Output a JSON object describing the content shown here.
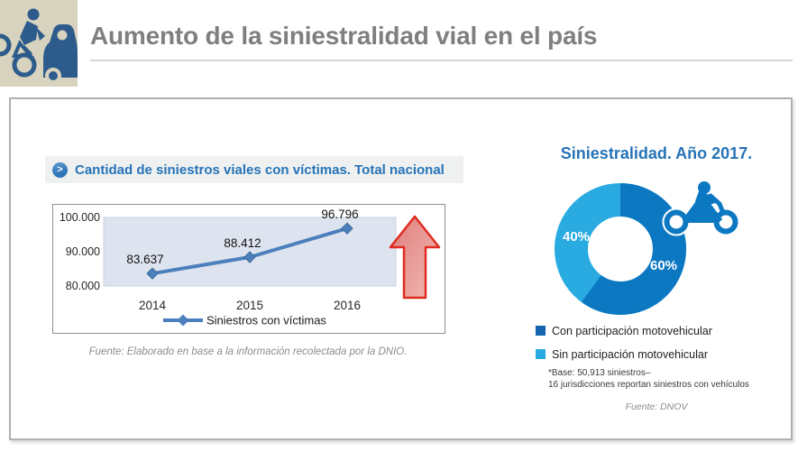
{
  "slide": {
    "title": "Aumento de la siniestralidad vial en el país"
  },
  "left_panel": {
    "section_header": "Cantidad de siniestros viales con víctimas. Total nacional",
    "source_note": "Fuente: Elaborado en base a la información recolectada por la DNIO."
  },
  "right_panel": {
    "title": "Siniestralidad. Año 2017.",
    "legend": [
      {
        "label": "Con participación motovehicular",
        "color": "#1265AE"
      },
      {
        "label": "Sin participación motovehicular",
        "color": "#29ABE2"
      }
    ],
    "footnote_line1": "*Base: 50,913 siniestros–",
    "footnote_line2": "16 jurisdicciones reportan siniestros con vehículos",
    "source_note": "Fuente: DNOV"
  },
  "icons": {
    "brand": "cyclist-and-car-pictogram",
    "section_bullet": "chevron-circle-icon",
    "trend": "growth-up-arrow-icon",
    "moto": "motorcycle-icon"
  },
  "colors": {
    "title_gray": "#7F7F7F",
    "accent_blue": "#2673B8",
    "line_blue": "#4C7FBC",
    "plot_background": "#DEE4EF",
    "donut_dark": "#0C78C2",
    "donut_light": "#29ABE2",
    "arrow_red": "#E02B20",
    "brand_background": "#D7D3BE",
    "brand_pictogram": "#2C5B8C"
  },
  "chart_data": [
    {
      "type": "line",
      "title": "Cantidad de siniestros viales con víctimas. Total nacional",
      "categories": [
        "2014",
        "2015",
        "2016"
      ],
      "series": [
        {
          "name": "Siniestros con víctimas",
          "values": [
            83637,
            88412,
            96796
          ]
        }
      ],
      "data_labels": [
        "83.637",
        "88.412",
        "96.796"
      ],
      "yticks": [
        "100.000",
        "90.000",
        "80.000"
      ],
      "ylim": [
        80000,
        100000
      ],
      "xlabel": "",
      "ylabel": "",
      "grid": false,
      "legend_position": "bottom",
      "annotation": "big red up arrow at right indicating increase"
    },
    {
      "type": "pie",
      "donut": true,
      "title": "Siniestralidad. Año 2017.",
      "labels": [
        "Con participación motovehicular",
        "Sin participación motovehicular"
      ],
      "values": [
        60,
        40
      ],
      "value_labels": [
        "60%",
        "40%"
      ],
      "colors": [
        "#0C78C2",
        "#29ABE2"
      ],
      "legend_position": "bottom"
    }
  ]
}
